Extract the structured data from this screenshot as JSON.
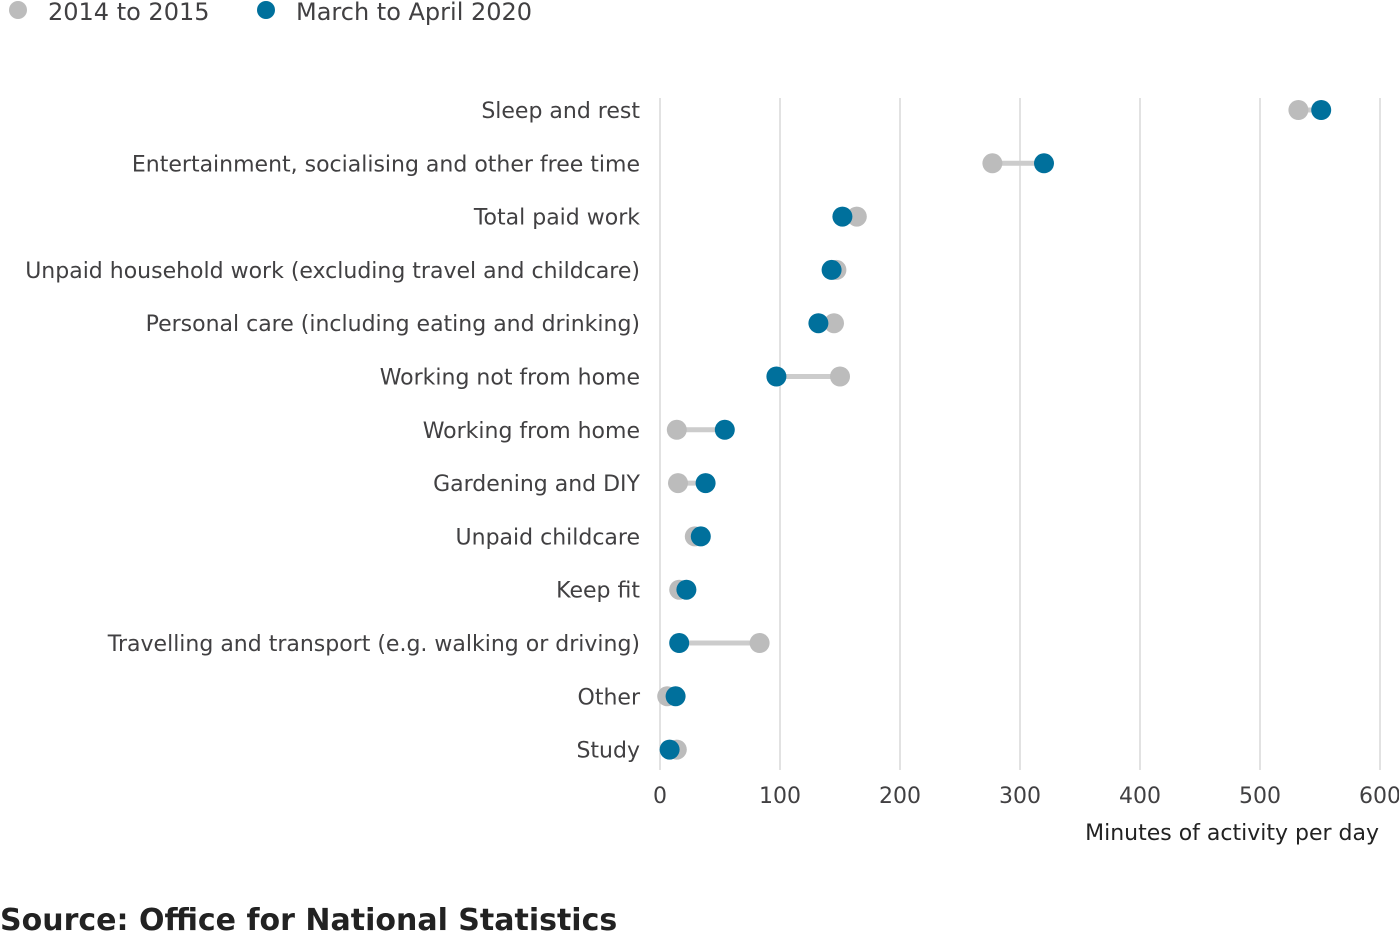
{
  "colors": {
    "series_2014": "#bcbcbc",
    "series_2020": "#00709c",
    "connector": "#cccccc",
    "grid": "#d9d9d9",
    "text": "#414042"
  },
  "source": "Source: Office for National Statistics",
  "chart_data": {
    "type": "scatter",
    "subtype": "dumbbell",
    "orientation": "horizontal",
    "title": "",
    "xlabel": "Minutes of activity per day",
    "ylabel": "",
    "xlim": [
      0,
      600
    ],
    "xticks": [
      0,
      100,
      200,
      300,
      400,
      500,
      600
    ],
    "grid": "vertical",
    "legend": "top-left",
    "categories": [
      "Sleep and rest",
      "Entertainment, socialising and other free time",
      "Total paid work",
      "Unpaid household work (excluding travel and childcare)",
      "Personal care (including eating and drinking)",
      "Working not from home",
      "Working from home",
      "Gardening and DIY",
      "Unpaid childcare",
      "Keep fit",
      "Travelling and transport (e.g. walking or driving)",
      "Other",
      "Study"
    ],
    "series": [
      {
        "name": "2014 to 2015",
        "color": "#bcbcbc",
        "values": [
          532,
          277,
          164,
          147,
          145,
          150,
          14,
          15,
          29,
          16,
          83,
          6,
          14
        ]
      },
      {
        "name": "March to April 2020",
        "color": "#00709c",
        "values": [
          551,
          320,
          152,
          143,
          132,
          97,
          54,
          38,
          34,
          22,
          16,
          13,
          8
        ]
      }
    ]
  }
}
